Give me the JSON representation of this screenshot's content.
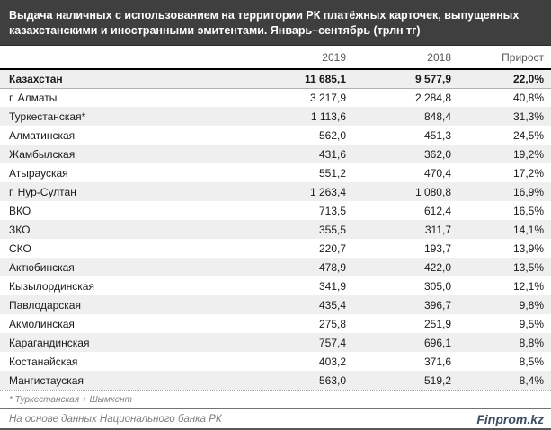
{
  "header": {
    "title": "Выдача наличных с использованием на территории РК платёжных карточек, выпущенных казахстанскими и иностранными эмитентами. Январь–сентябрь  (трлн тг)"
  },
  "chart_data": {
    "type": "table",
    "title": "Выдача наличных с использованием на территории РК платёжных карточек, выпущенных казахстанскими и иностранными эмитентами. Январь–сентябрь (трлн тг)",
    "columns": [
      "",
      "2019",
      "2018",
      "Прирост"
    ],
    "rows": [
      [
        "Казахстан",
        "11 685,1",
        "9 577,9",
        "22,0%"
      ],
      [
        "г. Алматы",
        "3 217,9",
        "2 284,8",
        "40,8%"
      ],
      [
        "Туркестанская*",
        "1 113,6",
        "848,4",
        "31,3%"
      ],
      [
        "Алматинская",
        "562,0",
        "451,3",
        "24,5%"
      ],
      [
        "Жамбылская",
        "431,6",
        "362,0",
        "19,2%"
      ],
      [
        "Атырауская",
        "551,2",
        "470,4",
        "17,2%"
      ],
      [
        "г. Нур-Султан",
        "1 263,4",
        "1 080,8",
        "16,9%"
      ],
      [
        "ВКО",
        "713,5",
        "612,4",
        "16,5%"
      ],
      [
        "ЗКО",
        "355,5",
        "311,7",
        "14,1%"
      ],
      [
        "СКО",
        "220,7",
        "193,7",
        "13,9%"
      ],
      [
        "Актюбинская",
        "478,9",
        "422,0",
        "13,5%"
      ],
      [
        "Кызылординская",
        "341,9",
        "305,0",
        "12,1%"
      ],
      [
        "Павлодарская",
        "435,4",
        "396,7",
        "9,8%"
      ],
      [
        "Акмолинская",
        "275,8",
        "251,9",
        "9,5%"
      ],
      [
        "Карагандинская",
        "757,4",
        "696,1",
        "8,8%"
      ],
      [
        "Костанайская",
        "403,2",
        "371,6",
        "8,5%"
      ],
      [
        "Мангистауская",
        "563,0",
        "519,2",
        "8,4%"
      ]
    ]
  },
  "footnote": "* Туркестанская + Шымкент",
  "footer": {
    "source": "На основе данных Национального банка РК",
    "brand": "Finprom.kz"
  },
  "colors": {
    "title_bar_bg": "#3f3f3f",
    "title_text": "#ffffff",
    "stripe": "#efefef",
    "header_text": "#595959",
    "muted_text": "#808080",
    "brand_text": "#3b4d61",
    "header_rule": "#000000"
  }
}
